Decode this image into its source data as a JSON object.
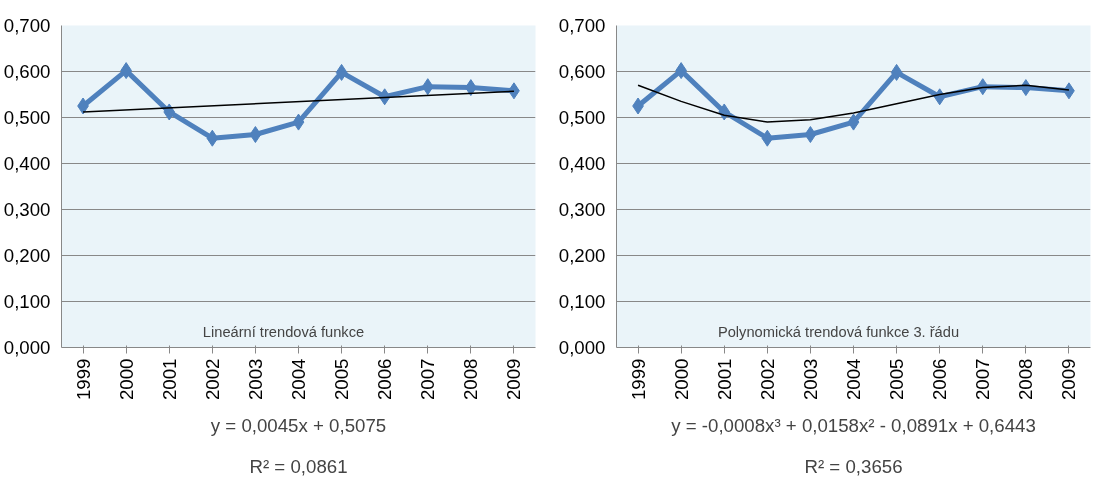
{
  "chart_data": [
    {
      "type": "line",
      "x": [
        1999,
        2000,
        2001,
        2002,
        2003,
        2004,
        2005,
        2006,
        2007,
        2008,
        2009
      ],
      "xlim": [
        1998.5,
        2009.5
      ],
      "xticks": [
        1999,
        2000,
        2001,
        2002,
        2003,
        2004,
        2005,
        2006,
        2007,
        2008,
        2009
      ],
      "ylim": [
        0,
        0.7
      ],
      "yticks": [
        {
          "value": 0,
          "label": "0,000"
        },
        {
          "value": 0.1,
          "label": "0,100"
        },
        {
          "value": 0.2,
          "label": "0,200"
        },
        {
          "value": 0.3,
          "label": "0,300"
        },
        {
          "value": 0.4,
          "label": "0,400"
        },
        {
          "value": 0.5,
          "label": "0,500"
        },
        {
          "value": 0.6,
          "label": "0,600"
        },
        {
          "value": 0.7,
          "label": "0,700"
        }
      ],
      "grid": "y",
      "marker": "diamond",
      "line_style": "solid",
      "series": [
        {
          "color": "#4f81bd",
          "values": [
            0.525,
            0.602,
            0.512,
            0.455,
            0.463,
            0.49,
            0.598,
            0.545,
            0.567,
            0.565,
            0.558
          ]
        },
        {
          "type": "line",
          "marker": "none",
          "color": "#000000",
          "x": [
            1999,
            2009
          ],
          "values": [
            0.512,
            0.557
          ]
        }
      ],
      "annotations": [
        "Lineární trendová funkce",
        "y = 0,0045x + 0,5075",
        "R² = 0,0861"
      ]
    },
    {
      "type": "line",
      "x": [
        1999,
        2000,
        2001,
        2002,
        2003,
        2004,
        2005,
        2006,
        2007,
        2008,
        2009
      ],
      "xlim": [
        1998.5,
        2009.5
      ],
      "xticks": [
        1999,
        2000,
        2001,
        2002,
        2003,
        2004,
        2005,
        2006,
        2007,
        2008,
        2009
      ],
      "ylim": [
        0,
        0.7
      ],
      "yticks": [
        {
          "value": 0,
          "label": "0,000"
        },
        {
          "value": 0.1,
          "label": "0,100"
        },
        {
          "value": 0.2,
          "label": "0,200"
        },
        {
          "value": 0.3,
          "label": "0,300"
        },
        {
          "value": 0.4,
          "label": "0,400"
        },
        {
          "value": 0.5,
          "label": "0,500"
        },
        {
          "value": 0.6,
          "label": "0,600"
        },
        {
          "value": 0.7,
          "label": "0,700"
        }
      ],
      "grid": "y",
      "marker": "diamond",
      "line_style": "solid",
      "series": [
        {
          "color": "#4f81bd",
          "values": [
            0.525,
            0.602,
            0.512,
            0.455,
            0.463,
            0.49,
            0.598,
            0.545,
            0.567,
            0.565,
            0.558
          ]
        },
        {
          "type": "line",
          "marker": "none",
          "color": "#000000",
          "x": [
            1999,
            2000,
            2001,
            2002,
            2003,
            2004,
            2005,
            2006,
            2007,
            2008,
            2009
          ],
          "values": [
            0.57,
            0.535,
            0.505,
            0.49,
            0.495,
            0.51,
            0.53,
            0.55,
            0.565,
            0.57,
            0.56
          ]
        }
      ],
      "annotations": [
        "Polynomická trendová funkce 3. řádu",
        "y = -0,0008x³ + 0,0158x² - 0,0891x + 0,6443",
        "R² = 0,3656"
      ]
    }
  ]
}
